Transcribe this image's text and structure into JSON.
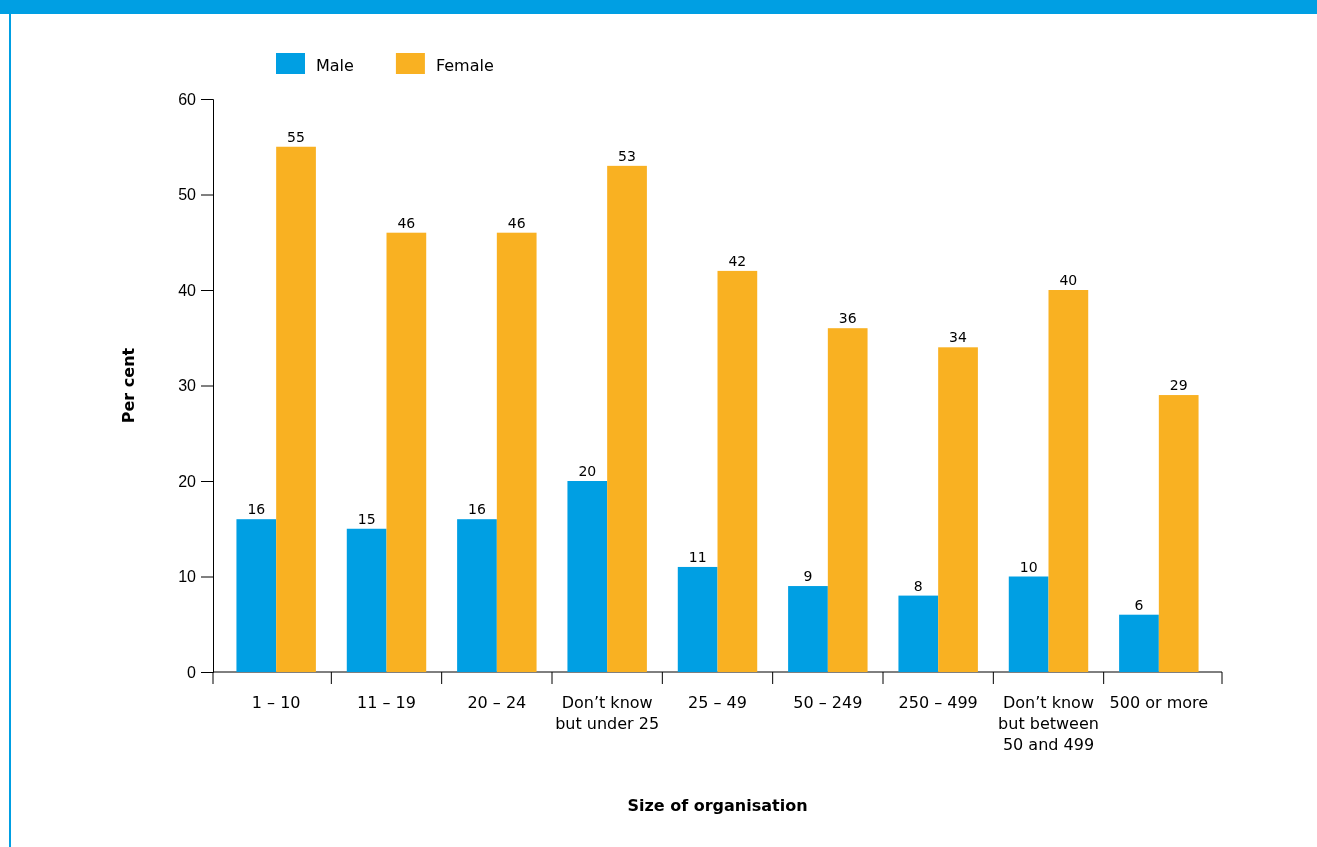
{
  "chart_data": {
    "type": "bar",
    "xlabel": "Size of organisation",
    "ylabel": "Per cent",
    "categories": [
      "1 – 10",
      "11 – 19",
      "20 – 24",
      "Don’t know but under 25",
      "25 – 49",
      "50 – 249",
      "250 – 499",
      "Don’t know but between 50 and 499",
      "500 or more"
    ],
    "series": [
      {
        "name": "Male",
        "color": "#009fe3",
        "values": [
          16,
          15,
          16,
          20,
          11,
          9,
          8,
          10,
          6
        ]
      },
      {
        "name": "Female",
        "color": "#f9b122",
        "values": [
          55,
          46,
          46,
          53,
          42,
          36,
          34,
          40,
          29
        ]
      }
    ],
    "ylim": [
      0,
      60
    ],
    "yticks": [
      0,
      10,
      20,
      30,
      40,
      50,
      60
    ],
    "data_labels": true,
    "legend": "top left",
    "grid": false
  }
}
